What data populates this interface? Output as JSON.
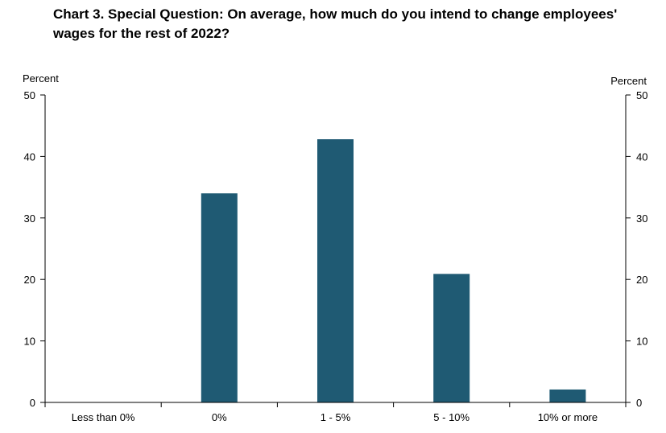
{
  "chart_data": {
    "type": "bar",
    "title_lines": [
      "Chart 3. Special Question: On average, how much do you intend to change employees'",
      "wages for the rest of 2022?"
    ],
    "ylabel_left": "Percent",
    "ylabel_right": "Percent",
    "categories": [
      "Less than 0%",
      "0%",
      "1 - 5%",
      "5 - 10%",
      "10% or more"
    ],
    "values": [
      0,
      34.0,
      42.8,
      20.9,
      2.1
    ],
    "ylim": [
      0,
      50
    ],
    "yticks": [
      0,
      10,
      20,
      30,
      40,
      50
    ],
    "bar_color": "#1f5a73",
    "grid": false,
    "legend": "none"
  }
}
